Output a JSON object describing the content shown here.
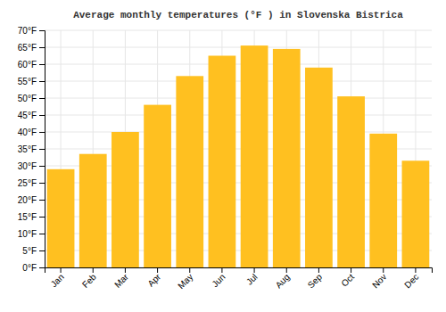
{
  "chart_data": {
    "type": "bar",
    "title": "Average monthly temperatures (°F ) in Slovenska Bistrica",
    "categories": [
      "Jan",
      "Feb",
      "Mar",
      "Apr",
      "May",
      "Jun",
      "Jul",
      "Aug",
      "Sep",
      "Oct",
      "Nov",
      "Dec"
    ],
    "values": [
      29,
      33.5,
      40,
      48,
      56.5,
      62.5,
      65.5,
      64.5,
      59,
      50.5,
      39.5,
      31.5
    ],
    "color": "#FFC020",
    "ylim": [
      0,
      70
    ],
    "yticks": [
      {
        "value": 0,
        "label": "0°F"
      },
      {
        "value": 5,
        "label": "5°F"
      },
      {
        "value": 10,
        "label": "10°F"
      },
      {
        "value": 15,
        "label": "15°F"
      },
      {
        "value": 20,
        "label": "20°F"
      },
      {
        "value": 25,
        "label": "25°F"
      },
      {
        "value": 30,
        "label": "30°F"
      },
      {
        "value": 35,
        "label": "35°F"
      },
      {
        "value": 40,
        "label": "40°F"
      },
      {
        "value": 45,
        "label": "45°F"
      },
      {
        "value": 50,
        "label": "50°F"
      },
      {
        "value": 55,
        "label": "55°F"
      },
      {
        "value": 60,
        "label": "60°F"
      },
      {
        "value": 65,
        "label": "65°F"
      },
      {
        "value": 70,
        "label": "70°F"
      }
    ],
    "grid": true
  }
}
